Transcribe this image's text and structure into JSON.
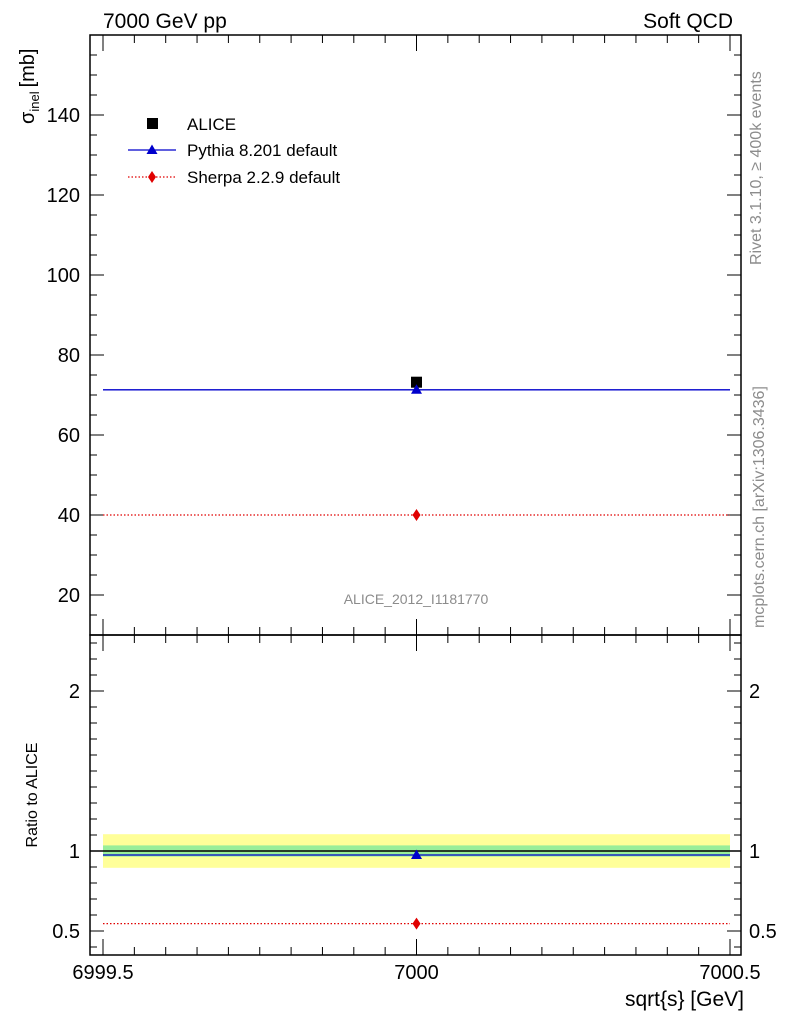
{
  "chart_data": [
    {
      "type": "scatter",
      "panel": "main",
      "header_left": "7000 GeV pp",
      "header_right": "Soft QCD",
      "ylabel": "σ",
      "ylabel_sub": "inel",
      "ylabel_unit": "[mb]",
      "xlim": [
        6999.5,
        7000.5
      ],
      "ylim": [
        10,
        160
      ],
      "yticks": [
        "20",
        "40",
        "60",
        "80",
        "100",
        "120",
        "140"
      ],
      "analysis_label": "ALICE_2012_I1181770",
      "side_label_top": "Rivet 3.1.10, ≥ 400k events",
      "side_label_bottom": "mcplots.cern.ch [arXiv:1306.3436]",
      "legend_position": "top-left",
      "series": [
        {
          "name": "ALICE",
          "color": "#000000",
          "marker": "square",
          "x": [
            7000
          ],
          "y": [
            73.2
          ]
        },
        {
          "name": "Pythia 8.201 default",
          "color": "#0000cc",
          "marker": "triangle",
          "x": [
            7000
          ],
          "y": [
            71.3
          ]
        },
        {
          "name": "Sherpa 2.2.9 default",
          "color": "#e00000",
          "marker": "diamond",
          "x": [
            7000
          ],
          "y": [
            40.0
          ]
        }
      ]
    },
    {
      "type": "scatter",
      "panel": "ratio",
      "ylabel": "Ratio to ALICE",
      "xlabel": "sqrt{s} [GeV]",
      "xlim": [
        6999.5,
        7000.5
      ],
      "xticks": [
        "6999.5",
        "7000",
        "7000.5"
      ],
      "ylim": [
        0.35,
        2.35
      ],
      "yticks": [
        "0.5",
        "1",
        "2"
      ],
      "bands": [
        {
          "name": "ALICE total uncertainty",
          "color": "#ffff99",
          "low": 0.895,
          "high": 1.105
        },
        {
          "name": "ALICE stat. uncertainty",
          "color": "#99ee99",
          "low": 0.965,
          "high": 1.035
        }
      ],
      "series": [
        {
          "name": "Pythia 8.201 default",
          "color": "#0000cc",
          "marker": "triangle",
          "x": [
            7000
          ],
          "y": [
            0.975
          ]
        },
        {
          "name": "Sherpa 2.2.9 default",
          "color": "#e00000",
          "marker": "diamond",
          "x": [
            7000
          ],
          "y": [
            0.546
          ]
        }
      ]
    }
  ]
}
